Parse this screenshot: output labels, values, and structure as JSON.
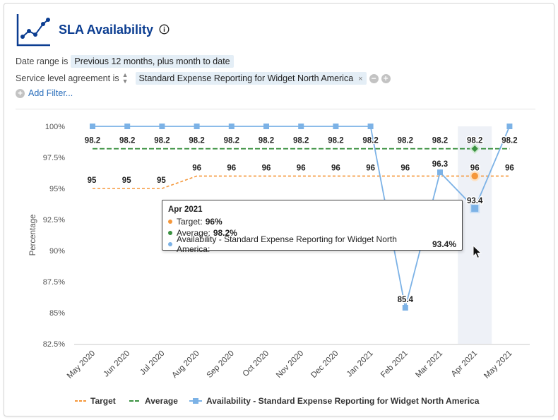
{
  "header": {
    "title": "SLA Availability",
    "logo_icon": "line-chart-icon",
    "info_icon": "info-circle-icon"
  },
  "filters": {
    "date_range_label": "Date range is",
    "date_range_value": "Previous 12 months, plus month to date",
    "sla_label": "Service level agreement is",
    "sla_value": "Standard Expense Reporting for Widget North America",
    "remove_glyph": "×",
    "minus_glyph": "−",
    "plus_glyph": "+",
    "add_filter_label": "Add Filter..."
  },
  "colors": {
    "target": "#f5973a",
    "average": "#3a9140",
    "availability": "#7cb2e6",
    "title": "#0b3d91",
    "link": "#2a6ebb"
  },
  "chart_data": {
    "type": "line",
    "ylabel": "Percentage",
    "xlabel": "",
    "ylim": [
      82.5,
      100
    ],
    "y_ticks": [
      "100%",
      "97.5%",
      "95%",
      "92.5%",
      "90%",
      "87.5%",
      "85%",
      "82.5%"
    ],
    "categories": [
      "May 2020",
      "Jun 2020",
      "Jul 2020",
      "Aug 2020",
      "Sep 2020",
      "Oct 2020",
      "Nov 2020",
      "Dec 2020",
      "Jan 2021",
      "Feb 2021",
      "Mar 2021",
      "Apr 2021",
      "May 2021"
    ],
    "highlighted_category_index": 11,
    "legend_position": "bottom",
    "series": [
      {
        "name": "Target",
        "style": "dashed",
        "color": "#f5973a",
        "values": [
          95,
          95,
          95,
          96,
          96,
          96,
          96,
          96,
          96,
          96,
          96,
          96,
          96
        ],
        "labels": [
          "95",
          "95",
          "95",
          "96",
          "96",
          "96",
          "96",
          "96",
          "96",
          "96",
          "",
          "96",
          "96"
        ]
      },
      {
        "name": "Average",
        "style": "dashed",
        "color": "#3a9140",
        "values": [
          98.2,
          98.2,
          98.2,
          98.2,
          98.2,
          98.2,
          98.2,
          98.2,
          98.2,
          98.2,
          98.2,
          98.2,
          98.2
        ],
        "labels": [
          "98.2",
          "98.2",
          "98.2",
          "98.2",
          "98.2",
          "98.2",
          "98.2",
          "98.2",
          "98.2",
          "98.2",
          "98.2",
          "98.2",
          "98.2"
        ]
      },
      {
        "name": "Availability - Standard Expense Reporting for Widget North America",
        "style": "solid-square-markers",
        "color": "#7cb2e6",
        "values": [
          100,
          100,
          100,
          100,
          100,
          100,
          100,
          100,
          100,
          85.4,
          96.3,
          93.4,
          100
        ],
        "labels": [
          "",
          "",
          "",
          "",
          "",
          "",
          "",
          "",
          "",
          "85.4",
          "96.3",
          "93.4",
          ""
        ]
      }
    ],
    "tooltip": {
      "title": "Apr 2021",
      "rows": [
        {
          "label": "Target:",
          "value": "96%",
          "color": "#f5973a"
        },
        {
          "label": "Average:",
          "value": "98.2%",
          "color": "#3a9140"
        },
        {
          "label": "Availability - Standard Expense Reporting for Widget North America:",
          "value": "93.4%",
          "color": "#7cb2e6"
        }
      ]
    }
  }
}
